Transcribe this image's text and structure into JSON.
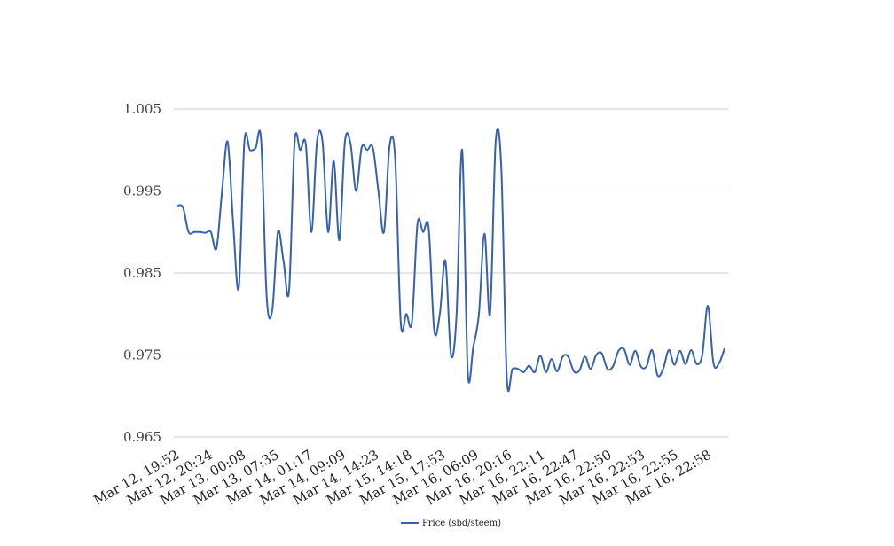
{
  "chart_data": {
    "type": "line",
    "title": "",
    "xlabel": "",
    "ylabel": "",
    "ylim": [
      0.965,
      1.005
    ],
    "yticks": [
      "0.965",
      "0.975",
      "0.985",
      "0.995",
      "1.005"
    ],
    "ytick_values": [
      0.965,
      0.975,
      0.985,
      0.995,
      1.005
    ],
    "xtick_labels": [
      "Mar 12, 19:52",
      "Mar 12, 20:24",
      "Mar 13, 00:08",
      "Mar 13, 07:35",
      "Mar 14, 01:17",
      "Mar 14, 09:09",
      "Mar 14, 14:23",
      "Mar 15, 14:18",
      "Mar 15, 17:53",
      "Mar 16, 06:09",
      "Mar 16, 20:16",
      "Mar 16, 22:11",
      "Mar 16, 22:47",
      "Mar 16, 22:50",
      "Mar 16, 22:53",
      "Mar 16, 22:55",
      "Mar 16, 22:58"
    ],
    "grid": true,
    "legend_position": "bottom-center",
    "series": [
      {
        "name": "Price (sbd/steem)",
        "color": "#3562b0",
        "values": [
          0.9932,
          0.993,
          0.99,
          0.99,
          0.99,
          0.9899,
          0.99,
          0.988,
          0.995,
          1.001,
          0.991,
          0.9832,
          1.001,
          1.0,
          1.0002,
          1.0012,
          0.982,
          0.9805,
          0.99,
          0.9865,
          0.9828,
          1.001,
          1.0,
          1.0007,
          0.99,
          1.001,
          1.001,
          0.99,
          0.9987,
          0.989,
          1.001,
          1.0008,
          0.995,
          1.0003,
          1.0,
          1.0003,
          0.995,
          0.99,
          1.0005,
          0.999,
          0.979,
          0.98,
          0.979,
          0.991,
          0.99,
          0.9905,
          0.978,
          0.98,
          0.9865,
          0.975,
          0.98,
          1.0,
          0.973,
          0.976,
          0.98,
          0.9898,
          0.98,
          1.001,
          0.998,
          0.9722,
          0.9733,
          0.9733,
          0.9729,
          0.9737,
          0.9729,
          0.9749,
          0.9729,
          0.9745,
          0.973,
          0.9748,
          0.9748,
          0.973,
          0.9731,
          0.9748,
          0.9733,
          0.975,
          0.9752,
          0.9733,
          0.9736,
          0.9755,
          0.9757,
          0.9738,
          0.9755,
          0.9736,
          0.9736,
          0.9756,
          0.9725,
          0.9733,
          0.9756,
          0.9738,
          0.9755,
          0.9739,
          0.9756,
          0.9739,
          0.975,
          0.981,
          0.974,
          0.974,
          0.9758
        ]
      }
    ]
  }
}
